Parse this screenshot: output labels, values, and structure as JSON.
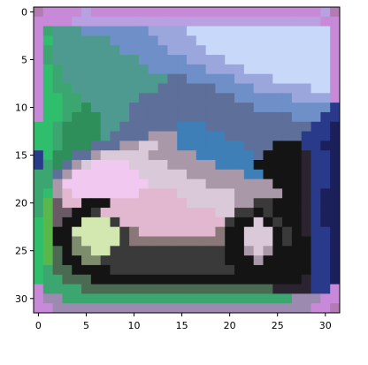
{
  "chart_data": {
    "type": "heatmap",
    "title": "",
    "xlabel": "",
    "ylabel": "",
    "xlim": [
      -0.5,
      31.5
    ],
    "ylim": [
      31.5,
      -0.5
    ],
    "x_ticks": [
      0,
      5,
      10,
      15,
      20,
      25,
      30
    ],
    "y_ticks": [
      0,
      5,
      10,
      15,
      20,
      25,
      30
    ],
    "grid": false,
    "image": {
      "width": 32,
      "height": 32,
      "palette": {
        "A": "#c88ad8",
        "B": "#b9a0e0",
        "C": "#9aa6dc",
        "D": "#6f8fc8",
        "E": "#4f9a90",
        "F": "#3ca670",
        "G": "#2fbf6c",
        "H": "#2f8f5a",
        "I": "#5e6f9a",
        "J": "#3f7fb8",
        "K": "#2a3a8a",
        "L": "#1b1f5a",
        "M": "#141414",
        "N": "#2b2430",
        "O": "#6a5a66",
        "P": "#a898a8",
        "Q": "#d9c9d9",
        "R": "#f0c8f0",
        "S": "#e2b8d0",
        "T": "#c8d8f8",
        "U": "#5ab84a",
        "V": "#3a3a3a",
        "W": "#8a7878",
        "X": "#d2e8b0",
        "Y": "#7c8c6c",
        "Z": "#4a6a52",
        "a": "#9c8ab0",
        "b": "#b47ab4"
      },
      "rows": [
        "bAAAABAAAAAAAAAAAAAAAAAAAAAAAABb",
        "AAAABBBBBBBBBBBBBBBBBBBBBBBBBBAA",
        "AFEEEDDDDDDDCCCCTTTTTTTTTTTTTTTA",
        "AGEEEEEEDDDDDCCCCTTTTTTTTTTTTTTA",
        "AFEEEEEEEDDDDDCCCCTTTTTTTTTTTTTA",
        "AFEEEEEEEEEDDDDDCCCCTTTTTTTTTTTA",
        "AGFEEEEEEEEEDDDDDDCCCCTTTTTTTTTA",
        "AGFEEEEEEEEEEEIIDDDDDCCCCTTTTTTA",
        "AGFFEEEEEEEEEIIIIIIDDDDCCCCCCTTA",
        "AGGFFEEEEEEIIIIIIIIIIDDDDDDCCCCA",
        "AGGFFHEEEEIIIIIIIIIIIIIDDDDDDDDK",
        "AGGFHHHEEEIIIIIIIIIIIIIIIIIDDDKK",
        "GGFHHHHEEIIIIIIJJJIIIIIIIIIIIKKL",
        "GGFHHHHEIIIIPPPJJJJJIIIIIIIIKKKL",
        "GGFHHHIIIPPQQPPJJJJJJJIIIMMMKKLL",
        "KGHHIIPQQQQQPPPPPJJJJJJIMMMMNKKL",
        "KFHIPQRRRRQQQQPPPPPJJJJMMMMMNKKL",
        "FFIPRRRRRRRQQQQQPPPPPPJJMMMMNKKL",
        "FFPRRRRRRRRRQQQQQQPPPPPPPMMMNKKL",
        "FGPSRRRRRRRSSSSQQQQQQPPPPPMMNKLL",
        "FUOSSMMMSSSSSSSSQQQQQPPVVMMMNKLL",
        "FUOOMMVSSSSSSSSSSSSQQVVMVMMMNKLL",
        "GUOMMXXXVSSSSSSSSSSSVMMQMVMMNKLL",
        "GUMMXXXXXVWSSSSSSSSWMMQQQMVMNKKL",
        "GUMMYXXXXVWWWWWWWWWWMMQQQMVMMKKL",
        "GUZMYYXXVVVVVVVVVVVVMMPQPMMMMKKL",
        "GUZMMYYVVVVVVVVVVVVVMMMPMMMMMKKL",
        "GFZZMMMMVVVVVVVVVVVVVMMMMMMMMKKL",
        "GFFZZZMMMMMMMMMMMMMMMMMMMMMMNKKL",
        "AFFFFZZZZZZZZZZZZZZZZZZZZNNNNKKA",
        "AaaFFFFFFFFFFFFFFFFFFFFFFFFaaaAA",
        "AAaaaaaaaaaaaaaaaaaaaaaaaaaaaAAb"
      ]
    }
  }
}
